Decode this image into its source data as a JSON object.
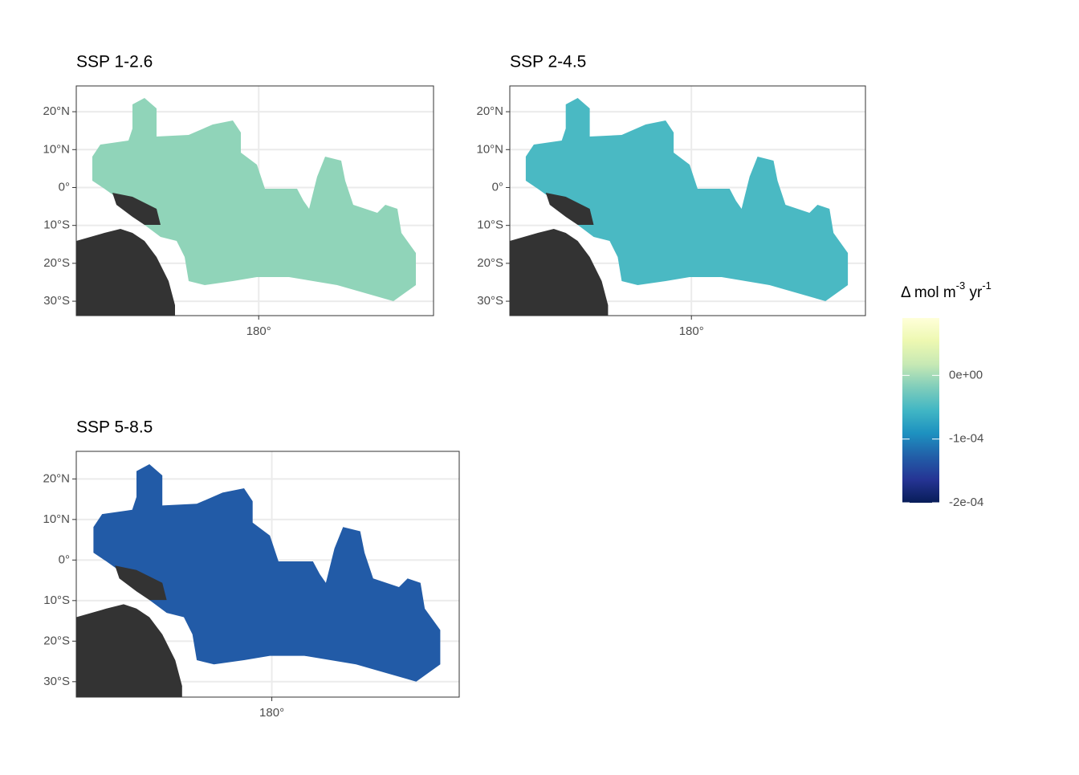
{
  "chart_data": {
    "type": "map",
    "panels": [
      {
        "title": "SSP 1-2.6",
        "value": -1e-05
      },
      {
        "title": "SSP 2-4.5",
        "value": -5e-05
      },
      {
        "title": "SSP 5-8.5",
        "value": -0.00013
      }
    ],
    "xlim": [
      132,
      226
    ],
    "ylim": [
      -33.8,
      26.8
    ],
    "xticks": [
      {
        "value": 180,
        "label": "180°"
      }
    ],
    "yticks": [
      {
        "value": 20,
        "label": "20°N"
      },
      {
        "value": 10,
        "label": "10°N"
      },
      {
        "value": 0,
        "label": "0°"
      },
      {
        "value": -10,
        "label": "10°S"
      },
      {
        "value": -20,
        "label": "20°S"
      },
      {
        "value": -30,
        "label": "30°S"
      }
    ],
    "grid": true,
    "legend": {
      "title": [
        "Δ mol m",
        "-3",
        " yr",
        "-1"
      ],
      "lim": [
        -0.0002,
        9e-05
      ],
      "ticks": [
        {
          "value": 0,
          "label": "0e+00"
        },
        {
          "value": -0.0001,
          "label": "-1e-04"
        },
        {
          "value": -0.0002,
          "label": "-2e-04"
        }
      ],
      "colors": [
        "#081d58",
        "#253494",
        "#225ea8",
        "#1d91c0",
        "#41b6c4",
        "#7fcdbb",
        "#c7e9b4",
        "#edf8b1",
        "#ffffd9"
      ]
    }
  }
}
